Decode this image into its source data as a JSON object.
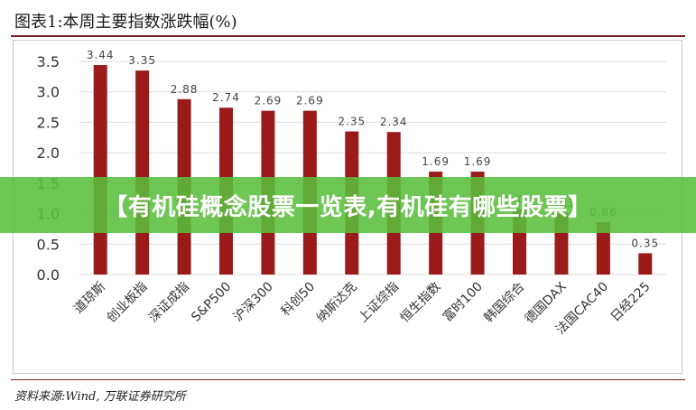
{
  "title": "图表1:本周主要指数涨跌幅(%)",
  "source": "资料来源:Wind, 万联证券研究所",
  "banner_text": "【有机硅概念股票一览表,有机硅有哪些股票】",
  "colors": {
    "bar": "#9b1b1b",
    "banner": "#5abe3c",
    "grid": "#dcdcdc"
  },
  "chart_data": {
    "type": "bar",
    "categories": [
      "道琼斯",
      "创业板指",
      "深证成指",
      "S&P500",
      "沪深300",
      "科创50",
      "纳斯达克",
      "上证综指",
      "恒生指数",
      "富时100",
      "韩国综合",
      "德国DAX",
      "法国CAC40",
      "日经225"
    ],
    "values": [
      3.44,
      3.35,
      2.88,
      2.74,
      2.69,
      2.69,
      2.35,
      2.34,
      1.69,
      1.69,
      1.07,
      1.01,
      0.86,
      0.35
    ],
    "data_labels": [
      "3.44",
      "3.35",
      "2.88",
      "2.74",
      "2.69",
      "2.69",
      "2.35",
      "2.34",
      "1.69",
      "1.69",
      "1.07",
      "1.01",
      "0.86",
      "0.35"
    ],
    "yticks": [
      "0.0",
      "0.5",
      "1.0",
      "1.5",
      "2.0",
      "2.5",
      "3.0",
      "3.5"
    ],
    "ylim": [
      0,
      3.5
    ],
    "grid": true,
    "legend": "none"
  }
}
